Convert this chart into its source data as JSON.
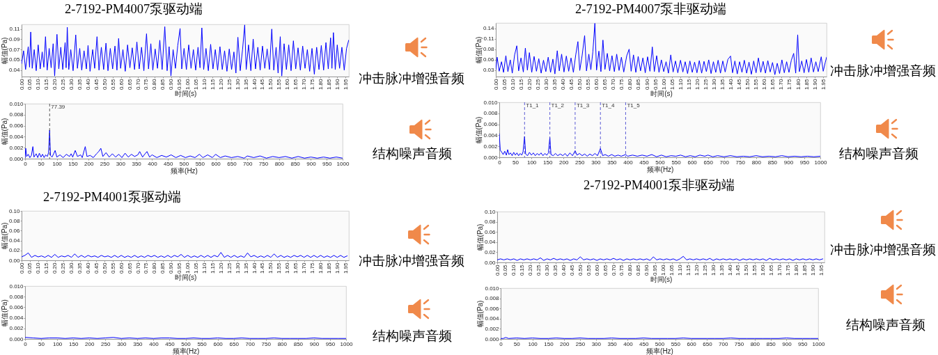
{
  "chart_data": [
    {
      "type": "line",
      "title": "2-7192-PM4007泵驱动端",
      "xlabel": "时间(s)",
      "ylabel": "幅值(Pa)",
      "x": [
        0,
        0.012,
        0.024,
        0.04,
        0.048,
        0.055,
        0.064,
        0.076,
        0.088,
        0.1,
        0.112,
        0.124,
        0.134,
        0.144,
        0.154,
        0.166,
        0.178,
        0.19,
        0.199,
        0.213,
        0.224,
        0.236,
        0.248,
        0.262,
        0.268,
        0.275,
        0.284,
        0.296,
        0.31,
        0.326,
        0.336,
        0.35,
        0.362,
        0.376,
        0.39,
        0.4,
        0.412,
        0.428,
        0.44,
        0.454,
        0.466,
        0.48,
        0.494,
        0.508,
        0.52,
        0.534,
        0.548,
        0.562,
        0.574,
        0.584,
        0.596,
        0.61,
        0.624,
        0.638,
        0.652,
        0.666,
        0.68,
        0.694,
        0.708,
        0.722,
        0.736,
        0.752,
        0.764,
        0.778,
        0.79,
        0.804,
        0.818,
        0.832,
        0.846,
        0.862,
        0.876,
        0.888,
        0.899,
        0.912,
        0.926,
        0.94,
        0.954,
        0.964,
        0.978,
        0.992,
        1.006,
        1.02,
        1.034,
        1.048,
        1.062,
        1.074,
        1.085,
        1.096,
        1.11,
        1.124,
        1.138,
        1.152,
        1.166,
        1.18,
        1.194,
        1.208,
        1.222,
        1.236,
        1.25,
        1.264,
        1.278,
        1.29,
        1.302,
        1.316,
        1.33,
        1.343,
        1.352,
        1.366,
        1.38,
        1.394,
        1.408,
        1.422,
        1.436,
        1.45,
        1.464,
        1.478,
        1.492,
        1.506,
        1.518,
        1.532,
        1.544,
        1.557,
        1.566,
        1.58,
        1.594,
        1.608,
        1.622,
        1.636,
        1.65,
        1.664,
        1.678,
        1.692,
        1.706,
        1.72,
        1.734,
        1.748,
        1.762,
        1.776,
        1.79,
        1.804,
        1.818,
        1.832,
        1.846,
        1.86,
        1.868,
        1.877,
        1.888,
        1.9,
        1.914,
        1.928,
        1.942,
        1.956,
        1.969
      ],
      "series": [
        {
          "color": "#0000ff",
          "values": [
            0.046,
            0.068,
            0.036,
            0.075,
            0.04,
            0.1,
            0.038,
            0.07,
            0.034,
            0.078,
            0.037,
            0.066,
            0.04,
            0.092,
            0.035,
            0.072,
            0.039,
            0.08,
            0.025,
            0.096,
            0.037,
            0.074,
            0.036,
            0.082,
            0.039,
            0.108,
            0.036,
            0.07,
            0.034,
            0.095,
            0.038,
            0.072,
            0.035,
            0.068,
            0.037,
            0.077,
            0.033,
            0.07,
            0.038,
            0.092,
            0.035,
            0.074,
            0.036,
            0.081,
            0.034,
            0.072,
            0.037,
            0.076,
            0.035,
            0.089,
            0.038,
            0.07,
            0.033,
            0.078,
            0.039,
            0.073,
            0.036,
            0.083,
            0.037,
            0.074,
            0.034,
            0.097,
            0.037,
            0.08,
            0.035,
            0.071,
            0.038,
            0.086,
            0.036,
            0.109,
            0.034,
            0.075,
            0.025,
            0.07,
            0.038,
            0.077,
            0.106,
            0.037,
            0.072,
            0.036,
            0.078,
            0.038,
            0.07,
            0.035,
            0.074,
            0.039,
            0.107,
            0.036,
            0.072,
            0.034,
            0.079,
            0.037,
            0.07,
            0.035,
            0.075,
            0.036,
            0.068,
            0.033,
            0.071,
            0.036,
            0.066,
            0.03,
            0.091,
            0.034,
            0.07,
            0.112,
            0.036,
            0.078,
            0.034,
            0.088,
            0.037,
            0.074,
            0.035,
            0.076,
            0.038,
            0.071,
            0.036,
            0.105,
            0.035,
            0.074,
            0.03,
            0.092,
            0.025,
            0.08,
            0.036,
            0.078,
            0.034,
            0.085,
            0.037,
            0.073,
            0.035,
            0.076,
            0.038,
            0.07,
            0.033,
            0.072,
            0.028,
            0.074,
            0.036,
            0.077,
            0.035,
            0.082,
            0.037,
            0.09,
            0.038,
            0.099,
            0.036,
            0.078,
            0.038,
            0.074,
            0.035,
            0.072,
            0.086
          ]
        }
      ],
      "xlim": [
        0,
        1.97
      ],
      "xticks": [
        {
          "value": 0,
          "label": "0.00"
        },
        0.05,
        {
          "value": 0.1,
          "label": "0.10"
        },
        0.15,
        {
          "value": 0.2,
          "label": "0.20"
        },
        0.25,
        {
          "value": 0.3,
          "label": "0.30"
        },
        0.35,
        {
          "value": 0.4,
          "label": "0.40"
        },
        0.45,
        {
          "value": 0.5,
          "label": "0.50"
        },
        0.55,
        {
          "value": 0.6,
          "label": "0.60"
        },
        0.65,
        {
          "value": 0.7,
          "label": "0.70"
        },
        0.75,
        {
          "value": 0.8,
          "label": "0.80"
        },
        0.85,
        {
          "value": 0.9,
          "label": "0.90"
        },
        0.95,
        {
          "value": 1,
          "label": "1.00"
        },
        1.05,
        {
          "value": 1.1,
          "label": "1.10"
        },
        1.15,
        {
          "value": 1.2,
          "label": "1.20"
        },
        1.25,
        {
          "value": 1.3,
          "label": "1.30"
        },
        1.35,
        {
          "value": 1.4,
          "label": "1.40"
        },
        1.45,
        {
          "value": 1.5,
          "label": "1.50"
        },
        1.55,
        {
          "value": 1.6,
          "label": "1.60"
        },
        1.65,
        {
          "value": 1.7,
          "label": "1.70"
        },
        1.75,
        {
          "value": 1.8,
          "label": "1.80"
        },
        1.85,
        {
          "value": 1.9,
          "label": "1.90"
        },
        1.95
      ],
      "ylim": [
        0.024,
        0.113
      ],
      "yticks": [
        {
          "value": 0.035,
          "label": "0.04"
        },
        {
          "value": 0.0525,
          "label": "0.05"
        },
        0.07,
        {
          "value": 0.0875,
          "label": "0.09"
        },
        {
          "value": 0.105,
          "label": "0.11"
        }
      ],
      "annotations": [
        "冲击脉冲增强音频"
      ]
    },
    {
      "type": "line",
      "xlabel": "频率(Hz)",
      "ylabel": "幅值(Pa)",
      "x": [
        0,
        2.1,
        5,
        10,
        15,
        20,
        24.6,
        28,
        35,
        40,
        45,
        50,
        55,
        60,
        65,
        70,
        74,
        77.39,
        80,
        85,
        90,
        94.7,
        100,
        110,
        120,
        130,
        140,
        145,
        150,
        158,
        165,
        175,
        180,
        189.5,
        195,
        205,
        215,
        225,
        232,
        238.6,
        245,
        255,
        265,
        275,
        285,
        295,
        305,
        315,
        325,
        335,
        345,
        355,
        361,
        370,
        378,
        384,
        392,
        400,
        415,
        430,
        445,
        460,
        475,
        490,
        505,
        520,
        535,
        549,
        560,
        575,
        590,
        600,
        615,
        630,
        650,
        670,
        690,
        700,
        720,
        740,
        760,
        780,
        800,
        820,
        840,
        860,
        880,
        900,
        920,
        940,
        960,
        980,
        1000
      ],
      "series": [
        {
          "color": "#0000ff",
          "values": [
            0.0002,
            0.0019,
            0.0004,
            0.0008,
            0.0002,
            0.0006,
            0.0022,
            0.0003,
            0.0009,
            0.0002,
            0.001,
            0.0003,
            0.0008,
            0.0002,
            0.0007,
            0.0004,
            0.0011,
            0.0052,
            0.0006,
            0.0003,
            0.0009,
            0.0015,
            0.0003,
            0.0007,
            0.0002,
            0.0008,
            0.0004,
            0.0009,
            0.0003,
            0.0015,
            0.0004,
            0.0007,
            0.0002,
            0.0022,
            0.0004,
            0.0006,
            0.0002,
            0.0009,
            0.0013,
            0.0019,
            0.0004,
            0.0011,
            0.0003,
            0.0009,
            0.0003,
            0.0008,
            0.0002,
            0.001,
            0.0003,
            0.0008,
            0.0004,
            0.0007,
            0.0013,
            0.0003,
            0.0009,
            0.0013,
            0.0003,
            0.0007,
            0.0002,
            0.0006,
            0.0003,
            0.0007,
            0.0002,
            0.0006,
            0.0002,
            0.0005,
            0.0002,
            0.0008,
            0.0002,
            0.0007,
            0.0002,
            0.0008,
            0.0002,
            0.0005,
            0.0002,
            0.0004,
            0.0001,
            0.0005,
            0.0002,
            0.0005,
            0.0001,
            0.0004,
            0.0002,
            0.0004,
            0.0001,
            0.0004,
            0.0001,
            0.0003,
            0.0001,
            0.0003,
            0.0001,
            0.0003,
            0.0001
          ]
        }
      ],
      "xlim": [
        0,
        1000
      ],
      "xticks": [
        0,
        50,
        100,
        150,
        200,
        250,
        300,
        350,
        400,
        450,
        500,
        550,
        600,
        650,
        700,
        750,
        800,
        850,
        900,
        950,
        1000
      ],
      "ylim": [
        0,
        0.01
      ],
      "yticks": [
        {
          "value": 0,
          "label": "0.000"
        },
        0.002,
        0.004,
        0.006,
        0.008,
        {
          "value": 0.01,
          "label": "0.010"
        }
      ],
      "ref_lines": [
        {
          "axis": "x",
          "value": 77.39,
          "label": "77.39",
          "color": "#333333",
          "line_style": "dashed"
        }
      ],
      "annotations": [
        "结构噪声音频"
      ]
    },
    {
      "type": "line",
      "title": "2-7192-PM4007泵非驱动端",
      "xlabel": "时间(s)",
      "ylabel": "幅值(Pa)",
      "x": [
        0,
        0.008,
        0.02,
        0.034,
        0.046,
        0.06,
        0.072,
        0.086,
        0.098,
        0.112,
        0.125,
        0.136,
        0.15,
        0.164,
        0.176,
        0.188,
        0.2,
        0.214,
        0.228,
        0.242,
        0.256,
        0.27,
        0.284,
        0.298,
        0.312,
        0.326,
        0.34,
        0.352,
        0.366,
        0.378,
        0.392,
        0.406,
        0.42,
        0.434,
        0.448,
        0.462,
        0.476,
        0.489,
        0.5,
        0.514,
        0.529,
        0.54,
        0.554,
        0.566,
        0.578,
        0.59,
        0.6,
        0.614,
        0.626,
        0.638,
        0.65,
        0.664,
        0.678,
        0.692,
        0.706,
        0.72,
        0.734,
        0.748,
        0.762,
        0.78,
        0.794,
        0.806,
        0.82,
        0.834,
        0.848,
        0.862,
        0.876,
        0.89,
        0.904,
        0.918,
        0.932,
        0.944,
        0.958,
        0.972,
        0.986,
        1,
        1.014,
        1.028,
        1.042,
        1.056,
        1.07,
        1.084,
        1.1,
        1.114,
        1.128,
        1.142,
        1.156,
        1.17,
        1.184,
        1.198,
        1.212,
        1.226,
        1.24,
        1.254,
        1.268,
        1.282,
        1.296,
        1.31,
        1.324,
        1.338,
        1.352,
        1.366,
        1.382,
        1.398,
        1.41,
        1.424,
        1.438,
        1.452,
        1.466,
        1.48,
        1.494,
        1.508,
        1.522,
        1.536,
        1.55,
        1.564,
        1.578,
        1.592,
        1.606,
        1.62,
        1.634,
        1.648,
        1.662,
        1.676,
        1.69,
        1.704,
        1.718,
        1.732,
        1.746,
        1.76,
        1.774,
        1.786,
        1.798,
        1.808,
        1.822,
        1.836,
        1.85,
        1.864,
        1.878,
        1.892,
        1.906,
        1.92,
        1.938,
        1.95,
        1.962,
        1.97
      ],
      "series": [
        {
          "color": "#0000ff",
          "values": [
            0.03,
            0.062,
            0.025,
            0.05,
            0.022,
            0.066,
            0.024,
            0.055,
            0.02,
            0.068,
            0.092,
            0.026,
            0.06,
            0.023,
            0.086,
            0.028,
            0.074,
            0.022,
            0.064,
            0.025,
            0.058,
            0.02,
            0.054,
            0.024,
            0.062,
            0.022,
            0.057,
            0.018,
            0.079,
            0.026,
            0.07,
            0.023,
            0.065,
            0.025,
            0.06,
            0.022,
            0.068,
            0.103,
            0.027,
            0.066,
            0.119,
            0.026,
            0.07,
            0.029,
            0.076,
            0.151,
            0.028,
            0.078,
            0.024,
            0.107,
            0.03,
            0.072,
            0.026,
            0.066,
            0.024,
            0.07,
            0.027,
            0.062,
            0.023,
            0.066,
            0.083,
            0.025,
            0.068,
            0.022,
            0.064,
            0.026,
            0.06,
            0.021,
            0.063,
            0.025,
            0.089,
            0.024,
            0.066,
            0.022,
            0.055,
            0.024,
            0.05,
            0.02,
            0.068,
            0.023,
            0.052,
            0.021,
            0.054,
            0.023,
            0.05,
            0.019,
            0.052,
            0.022,
            0.049,
            0.021,
            0.053,
            0.02,
            0.051,
            0.024,
            0.055,
            0.019,
            0.05,
            0.022,
            0.054,
            0.02,
            0.052,
            0.023,
            0.056,
            0.065,
            0.021,
            0.052,
            0.018,
            0.05,
            0.022,
            0.054,
            0.02,
            0.049,
            0.017,
            0.052,
            0.021,
            0.06,
            0.022,
            0.051,
            0.02,
            0.053,
            0.023,
            0.048,
            0.016,
            0.046,
            0.019,
            0.055,
            0.021,
            0.05,
            0.022,
            0.054,
            0.072,
            0.02,
            0.121,
            0.024,
            0.052,
            0.021,
            0.056,
            0.022,
            0.06,
            0.023,
            0.05,
            0.024,
            0.063,
            0.025,
            0.048,
            0.062
          ]
        }
      ],
      "xlim": [
        0,
        1.97
      ],
      "xticks": [
        {
          "value": 0,
          "label": "0.00"
        },
        0.05,
        {
          "value": 0.1,
          "label": "0.10"
        },
        0.15,
        {
          "value": 0.2,
          "label": "0.20"
        },
        0.25,
        {
          "value": 0.3,
          "label": "0.30"
        },
        0.35,
        {
          "value": 0.4,
          "label": "0.40"
        },
        0.45,
        {
          "value": 0.5,
          "label": "0.50"
        },
        0.55,
        {
          "value": 0.6,
          "label": "0.60"
        },
        0.65,
        {
          "value": 0.7,
          "label": "0.70"
        },
        0.75,
        {
          "value": 0.8,
          "label": "0.80"
        },
        0.85,
        {
          "value": 0.9,
          "label": "0.90"
        },
        0.95,
        {
          "value": 1,
          "label": "1.00"
        },
        1.05,
        {
          "value": 1.1,
          "label": "1.10"
        },
        1.15,
        {
          "value": 1.2,
          "label": "1.20"
        },
        1.25,
        {
          "value": 1.3,
          "label": "1.30"
        },
        1.35,
        {
          "value": 1.4,
          "label": "1.40"
        },
        1.45,
        {
          "value": 1.5,
          "label": "1.50"
        },
        1.55,
        {
          "value": 1.6,
          "label": "1.60"
        },
        1.65,
        {
          "value": 1.7,
          "label": "1.70"
        },
        1.75,
        {
          "value": 1.8,
          "label": "1.80"
        },
        1.85,
        {
          "value": 1.9,
          "label": "1.90"
        },
        1.95
      ],
      "ylim": [
        0.011,
        0.152
      ],
      "yticks": [
        {
          "value": 0.0275,
          "label": "0.03"
        },
        {
          "value": 0.055,
          "label": "0.06"
        },
        {
          "value": 0.0825,
          "label": "0.08"
        },
        0.11,
        {
          "value": 0.1375,
          "label": "0.14"
        }
      ],
      "annotations": [
        "冲击脉冲增强音频"
      ]
    },
    {
      "type": "line",
      "xlabel": "频率(Hz)",
      "ylabel": "幅值(Pa)",
      "x": [
        0,
        3,
        8,
        12,
        17,
        22,
        26,
        30,
        35,
        40,
        45,
        50,
        55,
        60,
        65,
        70,
        74,
        78.76,
        82,
        88,
        94,
        100,
        106,
        112,
        118,
        124,
        130,
        136,
        142,
        148,
        153,
        157.51,
        161,
        168,
        175,
        182,
        190,
        198,
        205,
        212,
        220,
        228,
        236.27,
        242,
        250,
        258,
        266,
        274,
        282,
        290,
        298,
        306,
        315.03,
        322,
        330,
        340,
        350,
        360,
        370,
        380,
        393.54,
        400,
        415,
        430,
        445,
        460,
        475,
        490,
        505,
        520,
        535,
        550,
        565,
        580,
        595,
        610,
        625,
        640,
        650,
        665,
        680,
        700,
        720,
        740,
        760,
        780,
        800,
        820,
        840,
        860,
        880,
        900,
        920,
        940,
        960,
        980,
        1000
      ],
      "series": [
        {
          "color": "#0000ff",
          "values": [
            0.0043,
            0.0013,
            0.0009,
            0.0005,
            0.0011,
            0.0004,
            0.0014,
            0.0005,
            0.0008,
            0.0003,
            0.0009,
            0.0004,
            0.0008,
            0.0003,
            0.0007,
            0.0004,
            0.001,
            0.0038,
            0.0006,
            0.0003,
            0.0009,
            0.0004,
            0.0008,
            0.0003,
            0.0007,
            0.0004,
            0.0008,
            0.0003,
            0.0007,
            0.0004,
            0.0008,
            0.0036,
            0.0005,
            0.0003,
            0.0007,
            0.0003,
            0.0006,
            0.0003,
            0.0007,
            0.0002,
            0.0008,
            0.0003,
            0.0012,
            0.0004,
            0.0007,
            0.0003,
            0.0006,
            0.0002,
            0.0006,
            0.0003,
            0.0007,
            0.0003,
            0.0016,
            0.0003,
            0.0005,
            0.0002,
            0.0005,
            0.0002,
            0.0004,
            0.0002,
            0.0005,
            0.0002,
            0.0004,
            0.0002,
            0.0004,
            0.0002,
            0.0005,
            0.0001,
            0.0004,
            0.0001,
            0.0003,
            0.0002,
            0.0004,
            0.0001,
            0.0003,
            0.0001,
            0.0004,
            0.0002,
            0.0004,
            0.0001,
            0.0003,
            0.0001,
            0.0003,
            0.0001,
            0.0002,
            0.0001,
            0.0003,
            0.0001,
            0.0002,
            0.0001,
            0.0003,
            0.0001,
            0.0002,
            0.0001,
            0.0002,
            0.0001,
            0.0002
          ]
        }
      ],
      "xlim": [
        0,
        1000
      ],
      "xticks": [
        0,
        50,
        100,
        150,
        200,
        250,
        300,
        350,
        400,
        450,
        500,
        550,
        600,
        650,
        700,
        750,
        800,
        850,
        900,
        950,
        1000
      ],
      "ylim": [
        0,
        0.01
      ],
      "yticks": [
        {
          "value": 0,
          "label": "0.000"
        },
        0.002,
        0.004,
        0.006,
        0.008,
        {
          "value": 0.01,
          "label": "0.010"
        }
      ],
      "ref_lines": [
        {
          "axis": "x",
          "value": 78.76,
          "label": "T1_1",
          "color": "#3333cc",
          "line_style": "dashed"
        },
        {
          "axis": "x",
          "value": 157.51,
          "label": "T1_2",
          "color": "#3333cc",
          "line_style": "dashed"
        },
        {
          "axis": "x",
          "value": 236.27,
          "label": "T1_3",
          "color": "#3333cc",
          "line_style": "dashed"
        },
        {
          "axis": "x",
          "value": 315.03,
          "label": "T1_4",
          "color": "#3333cc",
          "line_style": "dashed"
        },
        {
          "axis": "x",
          "value": 393.54,
          "label": "T1_5",
          "color": "#3333cc",
          "line_style": "dashed"
        }
      ],
      "annotations": [
        "结构噪声音频"
      ]
    },
    {
      "type": "line",
      "title": "2-7192-PM4001泵驱动端",
      "xlabel": "时间(s)",
      "ylabel": "幅值(Pa)",
      "x": [
        0,
        0.02,
        0.04,
        0.06,
        0.08,
        0.1,
        0.12,
        0.14,
        0.16,
        0.18,
        0.2,
        0.22,
        0.24,
        0.26,
        0.28,
        0.3,
        0.32,
        0.34,
        0.36,
        0.38,
        0.4,
        0.42,
        0.44,
        0.46,
        0.48,
        0.5,
        0.52,
        0.54,
        0.56,
        0.58,
        0.6,
        0.62,
        0.64,
        0.66,
        0.68,
        0.7,
        0.72,
        0.74,
        0.76,
        0.78,
        0.8,
        0.82,
        0.84,
        0.86,
        0.88,
        0.9,
        0.92,
        0.94,
        0.96,
        0.98,
        1,
        1.02,
        1.04,
        1.06,
        1.08,
        1.1,
        1.12,
        1.14,
        1.16,
        1.18,
        1.2,
        1.22,
        1.24,
        1.26,
        1.28,
        1.3,
        1.32,
        1.34,
        1.36,
        1.38,
        1.4,
        1.42,
        1.44,
        1.46,
        1.48,
        1.5,
        1.52,
        1.54,
        1.56,
        1.58,
        1.6,
        1.62,
        1.64,
        1.66,
        1.68,
        1.7,
        1.72,
        1.74,
        1.76,
        1.78,
        1.8,
        1.82,
        1.84,
        1.86,
        1.88,
        1.9,
        1.92,
        1.94,
        1.96
      ],
      "series": [
        {
          "color": "#0000ff",
          "values": [
            0.007,
            0.01,
            0.015,
            0.006,
            0.01,
            0.007,
            0.009,
            0.006,
            0.01,
            0.006,
            0.012,
            0.006,
            0.009,
            0.007,
            0.01,
            0.006,
            0.013,
            0.006,
            0.01,
            0.006,
            0.01,
            0.007,
            0.009,
            0.006,
            0.01,
            0.007,
            0.009,
            0.006,
            0.01,
            0.006,
            0.01,
            0.006,
            0.009,
            0.006,
            0.01,
            0.006,
            0.009,
            0.006,
            0.01,
            0.007,
            0.01,
            0.006,
            0.009,
            0.006,
            0.01,
            0.006,
            0.01,
            0.007,
            0.012,
            0.006,
            0.01,
            0.006,
            0.009,
            0.006,
            0.01,
            0.006,
            0.01,
            0.006,
            0.01,
            0.007,
            0.016,
            0.006,
            0.01,
            0.006,
            0.01,
            0.006,
            0.009,
            0.006,
            0.015,
            0.007,
            0.01,
            0.006,
            0.009,
            0.006,
            0.01,
            0.006,
            0.013,
            0.006,
            0.01,
            0.006,
            0.009,
            0.006,
            0.01,
            0.007,
            0.01,
            0.006,
            0.01,
            0.006,
            0.01,
            0.006,
            0.01,
            0.006,
            0.009,
            0.006,
            0.01,
            0.006,
            0.01,
            0.006,
            0.009
          ]
        }
      ],
      "xlim": [
        0,
        1.97
      ],
      "xticks": [
        {
          "value": 0,
          "label": "0.00"
        },
        0.05,
        {
          "value": 0.1,
          "label": "0.10"
        },
        0.15,
        {
          "value": 0.2,
          "label": "0.20"
        },
        0.25,
        {
          "value": 0.3,
          "label": "0.30"
        },
        0.35,
        {
          "value": 0.4,
          "label": "0.40"
        },
        0.45,
        {
          "value": 0.5,
          "label": "0.50"
        },
        0.55,
        {
          "value": 0.6,
          "label": "0.60"
        },
        0.65,
        {
          "value": 0.7,
          "label": "0.70"
        },
        0.75,
        {
          "value": 0.8,
          "label": "0.80"
        },
        0.85,
        {
          "value": 0.9,
          "label": "0.90"
        },
        0.95,
        {
          "value": 1,
          "label": "1.00"
        },
        1.05,
        {
          "value": 1.1,
          "label": "1.10"
        },
        1.15,
        {
          "value": 1.2,
          "label": "1.20"
        },
        1.25,
        {
          "value": 1.3,
          "label": "1.30"
        },
        1.35,
        {
          "value": 1.4,
          "label": "1.40"
        },
        1.45,
        {
          "value": 1.5,
          "label": "1.50"
        },
        1.55,
        {
          "value": 1.6,
          "label": "1.60"
        },
        1.65,
        {
          "value": 1.7,
          "label": "1.70"
        },
        1.75,
        {
          "value": 1.8,
          "label": "1.80"
        },
        1.85,
        {
          "value": 1.9,
          "label": "1.90"
        },
        1.95
      ],
      "ylim": [
        0,
        0.1
      ],
      "yticks": [
        {
          "value": 0,
          "label": "0.00"
        },
        0.02,
        0.04,
        0.06,
        0.08,
        {
          "value": 0.1,
          "label": "0.10"
        }
      ],
      "annotations": [
        "冲击脉冲增强音频"
      ]
    },
    {
      "type": "line",
      "xlabel": "频率(Hz)",
      "ylabel": "幅值(Pa)",
      "x": [
        0,
        25,
        50,
        75,
        100,
        125,
        150,
        175,
        200,
        225,
        250,
        275,
        300,
        325,
        350,
        375,
        400,
        425,
        450,
        475,
        500,
        525,
        550,
        575,
        600,
        625,
        650,
        675,
        700,
        725,
        750,
        775,
        800,
        825,
        850,
        875,
        900,
        925,
        950,
        975,
        1000
      ],
      "series": [
        {
          "color": "#0000ff",
          "values": [
            0.0003,
            0.0002,
            0.0001,
            0.0002,
            0.0002,
            0.0001,
            0.0002,
            0.0001,
            0.0002,
            0.0001,
            0.0002,
            0.0003,
            0.0001,
            0.0002,
            0.0001,
            0.0002,
            0.0001,
            0.0002,
            0.0002,
            0.0001,
            0.0001,
            0.0002,
            0.0001,
            0.0001,
            0.0002,
            0.0001,
            0.0001,
            0.0002,
            0.0001,
            0.0001,
            0.0001,
            0.0002,
            0.0001,
            0.0001,
            0.0001,
            0.0001,
            0.0002,
            0.0001,
            0.0001,
            0.0001,
            0.0001
          ]
        }
      ],
      "xlim": [
        0,
        1000
      ],
      "xticks": [
        0,
        50,
        100,
        150,
        200,
        250,
        300,
        350,
        400,
        450,
        500,
        550,
        600,
        650,
        700,
        750,
        800,
        850,
        900,
        950,
        1000
      ],
      "ylim": [
        0,
        0.01
      ],
      "yticks": [
        {
          "value": 0,
          "label": "0.000"
        },
        0.002,
        0.004,
        0.006,
        0.008,
        {
          "value": 0.01,
          "label": "0.010"
        }
      ],
      "annotations": [
        "结构噪声音频"
      ]
    },
    {
      "type": "line",
      "title": "2-7192-PM4001泵非驱动端",
      "xlabel": "时间(s)",
      "ylabel": "幅值(Pa)",
      "x": [
        0,
        0.02,
        0.04,
        0.06,
        0.08,
        0.1,
        0.12,
        0.14,
        0.16,
        0.18,
        0.2,
        0.22,
        0.24,
        0.26,
        0.28,
        0.3,
        0.32,
        0.34,
        0.36,
        0.38,
        0.4,
        0.42,
        0.44,
        0.46,
        0.48,
        0.5,
        0.52,
        0.54,
        0.56,
        0.58,
        0.6,
        0.62,
        0.64,
        0.66,
        0.68,
        0.7,
        0.72,
        0.74,
        0.76,
        0.78,
        0.8,
        0.82,
        0.84,
        0.86,
        0.88,
        0.9,
        0.92,
        0.94,
        0.96,
        0.98,
        1,
        1.02,
        1.04,
        1.06,
        1.08,
        1.1,
        1.12,
        1.14,
        1.16,
        1.18,
        1.2,
        1.22,
        1.24,
        1.26,
        1.28,
        1.3,
        1.32,
        1.34,
        1.36,
        1.38,
        1.4,
        1.42,
        1.44,
        1.46,
        1.48,
        1.5,
        1.52,
        1.54,
        1.56,
        1.58,
        1.6,
        1.62,
        1.64,
        1.66,
        1.68,
        1.7,
        1.72,
        1.74,
        1.76,
        1.78,
        1.8,
        1.82,
        1.84,
        1.86,
        1.88,
        1.9,
        1.92,
        1.94,
        1.96
      ],
      "series": [
        {
          "color": "#0000ff",
          "values": [
            0.005,
            0.007,
            0.005,
            0.007,
            0.005,
            0.007,
            0.004,
            0.007,
            0.005,
            0.007,
            0.005,
            0.007,
            0.005,
            0.009,
            0.004,
            0.007,
            0.005,
            0.008,
            0.005,
            0.007,
            0.005,
            0.007,
            0.004,
            0.007,
            0.005,
            0.011,
            0.005,
            0.007,
            0.005,
            0.007,
            0.004,
            0.007,
            0.005,
            0.007,
            0.005,
            0.008,
            0.005,
            0.007,
            0.004,
            0.007,
            0.005,
            0.007,
            0.005,
            0.007,
            0.005,
            0.007,
            0.004,
            0.011,
            0.005,
            0.007,
            0.005,
            0.007,
            0.005,
            0.007,
            0.004,
            0.007,
            0.012,
            0.005,
            0.007,
            0.005,
            0.007,
            0.005,
            0.007,
            0.005,
            0.008,
            0.004,
            0.007,
            0.005,
            0.007,
            0.005,
            0.007,
            0.005,
            0.007,
            0.004,
            0.007,
            0.005,
            0.007,
            0.005,
            0.007,
            0.005,
            0.007,
            0.004,
            0.008,
            0.005,
            0.007,
            0.005,
            0.007,
            0.005,
            0.007,
            0.004,
            0.007,
            0.005,
            0.007,
            0.005,
            0.007,
            0.005,
            0.007,
            0.005,
            0.007
          ]
        }
      ],
      "xlim": [
        0,
        1.97
      ],
      "xticks": [
        {
          "value": 0,
          "label": "0.00"
        },
        0.05,
        {
          "value": 0.1,
          "label": "0.10"
        },
        0.15,
        {
          "value": 0.2,
          "label": "0.20"
        },
        0.25,
        {
          "value": 0.3,
          "label": "0.30"
        },
        0.35,
        {
          "value": 0.4,
          "label": "0.40"
        },
        0.45,
        {
          "value": 0.5,
          "label": "0.50"
        },
        0.55,
        {
          "value": 0.6,
          "label": "0.60"
        },
        0.65,
        {
          "value": 0.7,
          "label": "0.70"
        },
        0.75,
        {
          "value": 0.8,
          "label": "0.80"
        },
        0.85,
        {
          "value": 0.9,
          "label": "0.90"
        },
        0.95,
        {
          "value": 1,
          "label": "1.00"
        },
        1.05,
        {
          "value": 1.1,
          "label": "1.10"
        },
        1.15,
        {
          "value": 1.2,
          "label": "1.20"
        },
        1.25,
        {
          "value": 1.3,
          "label": "1.30"
        },
        1.35,
        {
          "value": 1.4,
          "label": "1.40"
        },
        1.45,
        {
          "value": 1.5,
          "label": "1.50"
        },
        1.55,
        {
          "value": 1.6,
          "label": "1.60"
        },
        1.65,
        {
          "value": 1.7,
          "label": "1.70"
        },
        1.75,
        {
          "value": 1.8,
          "label": "1.80"
        },
        1.85,
        {
          "value": 1.9,
          "label": "1.90"
        },
        1.95
      ],
      "ylim": [
        0,
        0.1
      ],
      "yticks": [
        {
          "value": 0,
          "label": "0.00"
        },
        0.02,
        0.04,
        0.06,
        0.08,
        {
          "value": 0.1,
          "label": "0.10"
        }
      ],
      "annotations": [
        "冲击脉冲增强音频"
      ]
    },
    {
      "type": "line",
      "xlabel": "频率(Hz)",
      "ylabel": "幅值(Pa)",
      "x": [
        0,
        8,
        16,
        25,
        50,
        75,
        100,
        125,
        150,
        175,
        200,
        225,
        250,
        275,
        300,
        325,
        350,
        375,
        400,
        425,
        450,
        475,
        500,
        525,
        550,
        575,
        600,
        625,
        650,
        675,
        700,
        725,
        750,
        775,
        800,
        825,
        850,
        875,
        900,
        925,
        950,
        975,
        1000
      ],
      "series": [
        {
          "color": "#0000ff",
          "values": [
            0.0001,
            0.0001,
            0.0003,
            0.0001,
            0.0002,
            0.0001,
            0.0002,
            0.0001,
            0.0001,
            0.0002,
            0.0001,
            0.0001,
            0.0002,
            0.0001,
            0.0001,
            0.0001,
            0.0002,
            0.0001,
            0.0001,
            0.0001,
            0.0002,
            0.0001,
            0.0001,
            0.0001,
            0.0001,
            0.0002,
            0.0001,
            0.0001,
            0.0001,
            0.0001,
            0.0001,
            0.0002,
            0.0001,
            0.0001,
            0.0001,
            0.0001,
            0.0001,
            0.0001,
            0.0002,
            0.0001,
            0.0001,
            0.0001,
            0.0001
          ]
        }
      ],
      "xlim": [
        0,
        1000
      ],
      "xticks": [
        0,
        50,
        100,
        150,
        200,
        250,
        300,
        350,
        400,
        450,
        500,
        550,
        600,
        650,
        700,
        750,
        800,
        850,
        900,
        950,
        1000
      ],
      "ylim": [
        0,
        0.01
      ],
      "yticks": [
        {
          "value": 0,
          "label": "0.000"
        },
        0.002,
        0.004,
        0.006,
        0.008,
        {
          "value": 0.01,
          "label": "0.010"
        }
      ],
      "annotations": [
        "结构噪声音频"
      ]
    }
  ]
}
